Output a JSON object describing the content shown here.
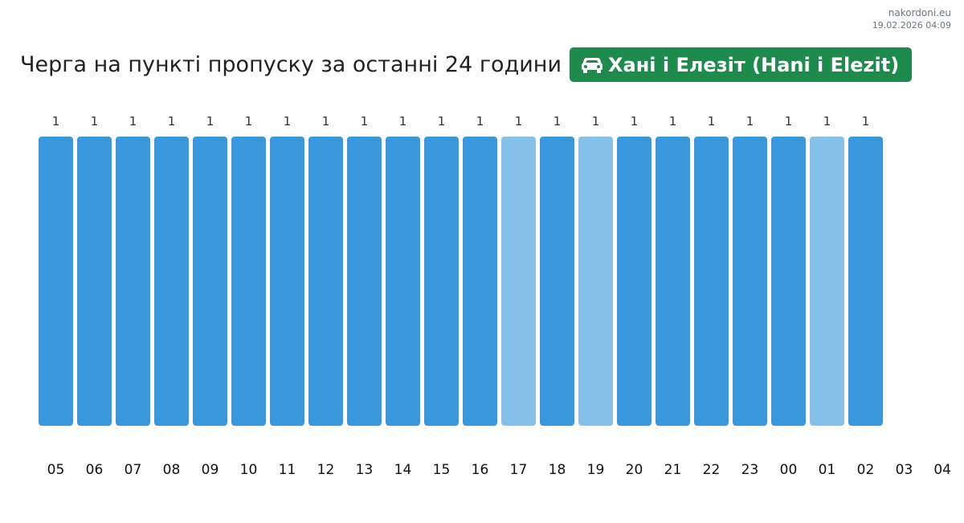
{
  "header": {
    "site": "nakordoni.eu",
    "timestamp": "19.02.2026 04:09",
    "title": "Черга на пункті пропуску за останні 24 години",
    "checkpoint": "Хані і Елезіт (Hani i Elezit)",
    "checkpoint_icon": "car-icon",
    "badge_color": "#1e8a4e"
  },
  "chart_data": {
    "type": "bar",
    "title": "Черга на пункті пропуску за останні 24 години",
    "categories": [
      "05",
      "06",
      "07",
      "08",
      "09",
      "10",
      "11",
      "12",
      "13",
      "14",
      "15",
      "16",
      "17",
      "18",
      "19",
      "20",
      "21",
      "22",
      "23",
      "00",
      "01",
      "02",
      "03",
      "04"
    ],
    "values": [
      1,
      1,
      1,
      1,
      1,
      1,
      1,
      1,
      1,
      1,
      1,
      1,
      1,
      1,
      1,
      1,
      1,
      1,
      1,
      1,
      1,
      1,
      null,
      null
    ],
    "highlighted": [
      false,
      false,
      false,
      false,
      false,
      false,
      false,
      false,
      false,
      false,
      false,
      false,
      true,
      false,
      true,
      false,
      false,
      false,
      false,
      false,
      true,
      false,
      false,
      false
    ],
    "ylim": [
      0,
      1
    ],
    "grid": false,
    "legend": "none",
    "colors": {
      "bar": "#3898db",
      "bar_light": "#86c0e8"
    }
  }
}
